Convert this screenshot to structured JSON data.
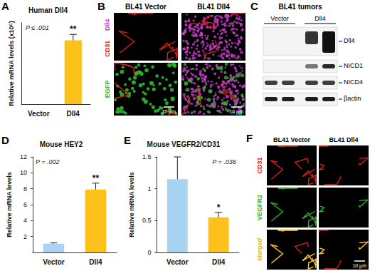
{
  "chart_data": [
    {
      "panel": "A",
      "type": "bar",
      "title": "Human Dll4",
      "y_label": "Relative mRNA levels (x10⁵)",
      "categories": [
        "Vector",
        "Dll4"
      ],
      "values": [
        0,
        5.5
      ],
      "errors": [
        0,
        0.5
      ],
      "colors": [
        "#a9d3f2",
        "#fcc21b"
      ],
      "ylim": [
        0,
        7
      ],
      "yticks": [],
      "tick_labels": "x",
      "grid": false,
      "annotations": [
        {
          "text": "P ≤ .001"
        },
        {
          "text": "**",
          "category": "Dll4"
        }
      ]
    },
    {
      "panel": "D",
      "type": "bar",
      "title": "Mouse HEY2",
      "y_label": "Relative mRNA levels",
      "categories": [
        "Vector",
        "Dll4"
      ],
      "values": [
        1.1,
        7.9
      ],
      "errors": [
        0.1,
        0.8
      ],
      "colors": [
        "#a9d3f2",
        "#fcc21b"
      ],
      "ylim": [
        0,
        12
      ],
      "yticks": [
        2,
        4,
        6,
        8,
        10,
        12
      ],
      "grid": false,
      "annotations": [
        {
          "text": "P = .002"
        },
        {
          "text": "**",
          "category": "Dll4"
        }
      ]
    },
    {
      "panel": "E",
      "type": "bar",
      "title": "Mouse VEGFR2/CD31",
      "y_label": "Relative mRNA levels",
      "categories": [
        "Vector",
        "Dll4"
      ],
      "values": [
        1.15,
        0.55
      ],
      "errors": [
        0.35,
        0.08
      ],
      "colors": [
        "#a9d3f2",
        "#fcc21b"
      ],
      "ylim": [
        0,
        1.5
      ],
      "yticks": [
        0,
        0.5,
        1,
        1.5
      ],
      "grid": false,
      "annotations": [
        {
          "text": "P = .036"
        },
        {
          "text": "*",
          "category": "Dll4"
        }
      ]
    }
  ],
  "images": [
    {
      "panel": "B",
      "columns": [
        "BL41 Vector",
        "BL41 Dll4"
      ],
      "rows": [
        [
          {
            "text": "Dll4",
            "color": "#c93fc9"
          },
          {
            "text": "CD31",
            "color": "#e0201b"
          }
        ],
        [
          {
            "text": "EGFP",
            "color": "#2fb82f"
          }
        ]
      ],
      "scale_bar": "10 µm"
    },
    {
      "panel": "C",
      "title": "BL41 tumors",
      "lanes": [
        "Vector",
        "Dll4"
      ],
      "bands": [
        "Dll4",
        "NICD1",
        "NICD4",
        "βactin"
      ]
    },
    {
      "panel": "F",
      "columns": [
        "BL41 Vector",
        "BL41 Dll4"
      ],
      "rows": [
        [
          {
            "text": "CD31",
            "color": "#e0201b"
          }
        ],
        [
          {
            "text": "VEGFR2",
            "color": "#2fb82f"
          }
        ],
        [
          {
            "text": "Merged",
            "color": "#e8b923"
          }
        ]
      ],
      "scale_bar": "10 µm"
    }
  ]
}
